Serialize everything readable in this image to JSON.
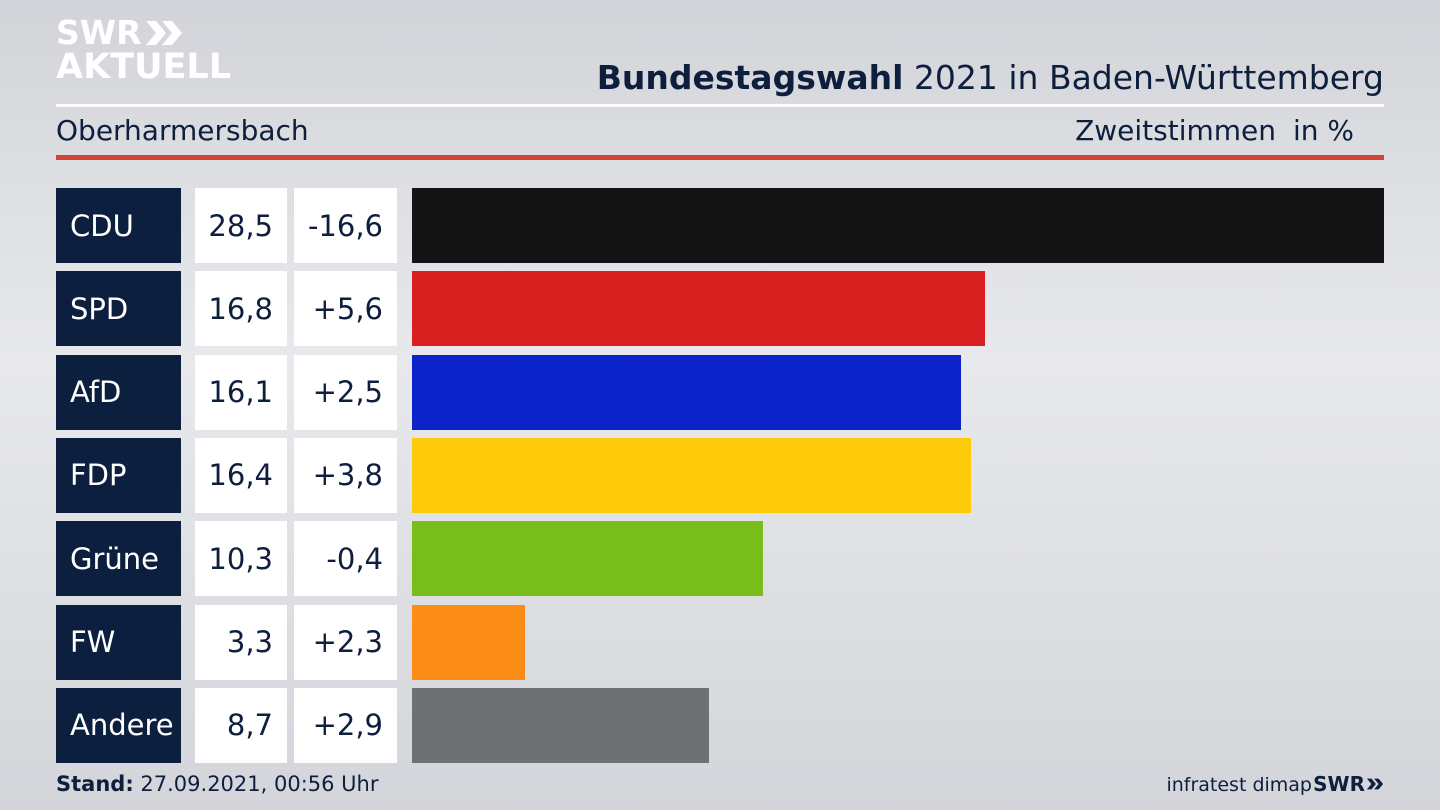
{
  "header": {
    "logo_line1": "SWR",
    "logo_line2": "AKTUELL",
    "title_bold": "Bundestagswahl",
    "title_rest": " 2021 in Baden-Württemberg",
    "region": "Oberharmersbach",
    "metric": "Zweitstimmen",
    "unit": "in %"
  },
  "footer": {
    "stand_label": "Stand:",
    "stand_value": " 27.09.2021, 00:56 Uhr",
    "source": "infratest dimap",
    "logo_small": "SWR"
  },
  "chart_data": {
    "type": "bar",
    "title": "Bundestagswahl 2021 in Baden-Württemberg",
    "categories": [
      "CDU",
      "SPD",
      "AfD",
      "FDP",
      "Grüne",
      "FW",
      "Andere"
    ],
    "values": [
      28.5,
      16.8,
      16.1,
      16.4,
      10.3,
      3.3,
      8.7
    ],
    "value_labels": [
      "28,5",
      "16,8",
      "16,1",
      "16,4",
      "10,3",
      "3,3",
      "8,7"
    ],
    "diff_labels": [
      "-16,6",
      "+5,6",
      "+2,5",
      "+3,8",
      "-0,4",
      "+2,3",
      "+2,9"
    ],
    "colors": [
      "#141414",
      "#d7201f",
      "#0b23c9",
      "#fecb0a",
      "#78bd1c",
      "#fb8d17",
      "#6f7072"
    ],
    "xlim": [
      0,
      28.5
    ]
  }
}
